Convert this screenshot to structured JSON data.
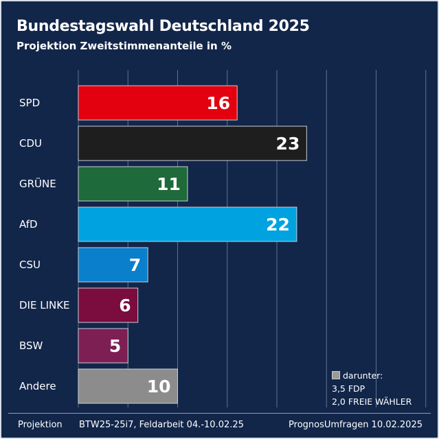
{
  "header": {
    "title": "Bundestagswahl Deutschland 2025",
    "subtitle": "Projektion Zweitstimmenanteile in %"
  },
  "chart_data": {
    "type": "bar",
    "orientation": "horizontal",
    "title": "Bundestagswahl Deutschland 2025",
    "subtitle": "Projektion Zweitstimmenanteile in %",
    "categories": [
      "SPD",
      "CDU",
      "GRÜNE",
      "AfD",
      "CSU",
      "DIE LINKE",
      "BSW",
      "Andere"
    ],
    "values": [
      16,
      23,
      11,
      22,
      7,
      6,
      5,
      10
    ],
    "colors": [
      "#e3000f",
      "#1e1e1e",
      "#1f6a3a",
      "#00a3e0",
      "#0a7fcc",
      "#7a0c3e",
      "#7d1f53",
      "#8c8c8c"
    ],
    "xlim": [
      0,
      35
    ],
    "grid": true,
    "legend": "none"
  },
  "note": {
    "label": "darunter:",
    "lines": [
      "3,5 FDP",
      "2,0 FREIE WÄHLER"
    ]
  },
  "footer": {
    "left": "Projektion",
    "middle": "BTW25-25i7, Feldarbeit 04.-10.02.25",
    "right": "PrognosUmfragen 10.02.2025"
  }
}
